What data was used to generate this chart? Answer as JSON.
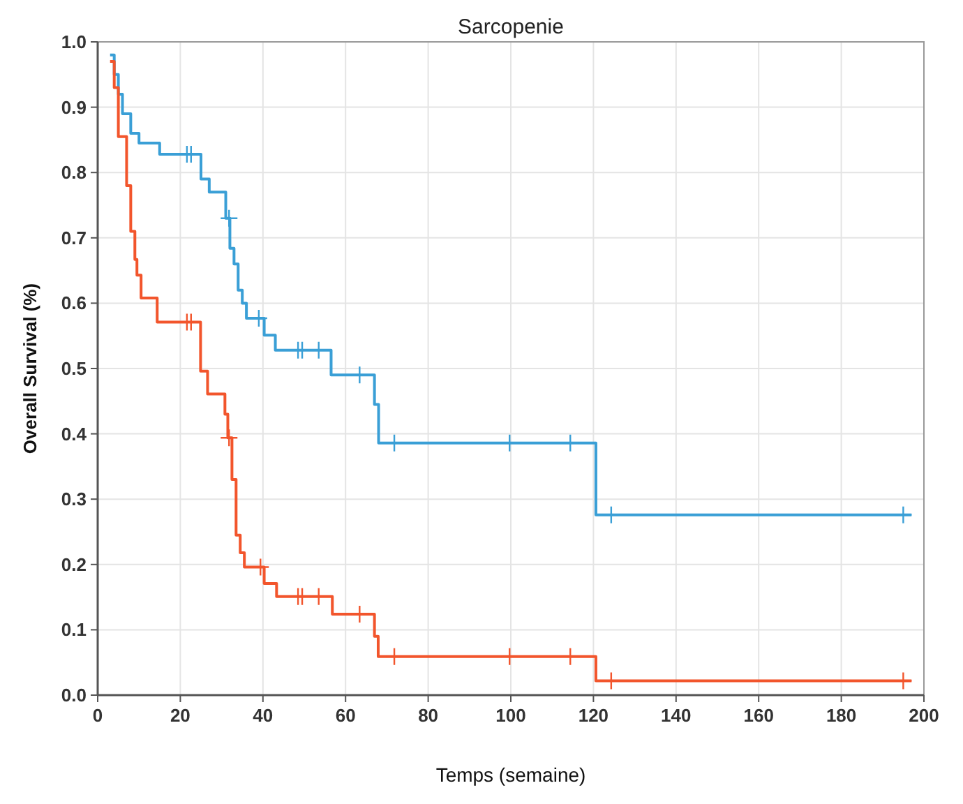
{
  "chart_data": {
    "type": "step",
    "title": "Sarcopenie",
    "xlabel": "Temps (semaine)",
    "ylabel": "Overall Survival (%)",
    "xlim": [
      0,
      200
    ],
    "xticks": [
      0,
      20,
      40,
      60,
      80,
      100,
      120,
      140,
      160,
      180,
      200
    ],
    "ylim": [
      0,
      1
    ],
    "yticks": [
      {
        "value": 0,
        "label": "0.0"
      },
      {
        "value": 0.1,
        "label": "0.1"
      },
      {
        "value": 0.2,
        "label": "0.2"
      },
      {
        "value": 0.3,
        "label": "0.3"
      },
      {
        "value": 0.4,
        "label": "0.4"
      },
      {
        "value": 0.5,
        "label": "0.5"
      },
      {
        "value": 0.6,
        "label": "0.6"
      },
      {
        "value": 0.7,
        "label": "0.7"
      },
      {
        "value": 0.8,
        "label": "0.8"
      },
      {
        "value": 0.9,
        "label": "0.9"
      },
      {
        "value": 1,
        "label": "1.0"
      }
    ],
    "grid": true,
    "series": [
      {
        "color": "#3a9fd6",
        "x": [
          3,
          4,
          5,
          6,
          8,
          10,
          15,
          25,
          27,
          31,
          32,
          33,
          34,
          35,
          36,
          40.3,
          43,
          56.5,
          67,
          68,
          120.6,
          197
        ],
        "values": [
          0.98,
          0.95,
          0.92,
          0.89,
          0.86,
          0.845,
          0.828,
          0.79,
          0.77,
          0.73,
          0.684,
          0.66,
          0.62,
          0.6,
          0.577,
          0.551,
          0.528,
          0.49,
          0.445,
          0.386,
          0.276,
          0.276
        ]
      },
      {
        "color": "#f2552c",
        "x": [
          3,
          4,
          5,
          7,
          8,
          9,
          9.5,
          10.5,
          14.4,
          24.9,
          26.6,
          30.8,
          31.5,
          32.5,
          33.5,
          34.5,
          35.5,
          40.3,
          43.3,
          56.8,
          67,
          67.9,
          120.6,
          197
        ],
        "values": [
          0.97,
          0.93,
          0.855,
          0.78,
          0.71,
          0.667,
          0.643,
          0.608,
          0.571,
          0.496,
          0.461,
          0.43,
          0.394,
          0.33,
          0.245,
          0.218,
          0.196,
          0.171,
          0.151,
          0.124,
          0.09,
          0.059,
          0.022,
          0.022
        ]
      },
      {
        "type": "scatter",
        "marker": "cross",
        "color": "#3a9fd6",
        "x": [
          21.6,
          22.6,
          31.8,
          39,
          48.5,
          49.5,
          53.5,
          63.4,
          71.8,
          99.7,
          114.4,
          124.3,
          195
        ],
        "values": [
          0.828,
          0.828,
          0.73,
          0.577,
          0.528,
          0.528,
          0.528,
          0.49,
          0.386,
          0.386,
          0.386,
          0.276,
          0.276
        ]
      },
      {
        "type": "scatter",
        "marker": "cross",
        "color": "#f2552c",
        "x": [
          21.6,
          22.6,
          31.8,
          39.4,
          48.5,
          49.5,
          53.5,
          63.4,
          71.8,
          99.7,
          114.4,
          124.3,
          195
        ],
        "values": [
          0.571,
          0.571,
          0.394,
          0.196,
          0.151,
          0.151,
          0.151,
          0.124,
          0.059,
          0.059,
          0.059,
          0.022,
          0.022
        ]
      }
    ]
  }
}
